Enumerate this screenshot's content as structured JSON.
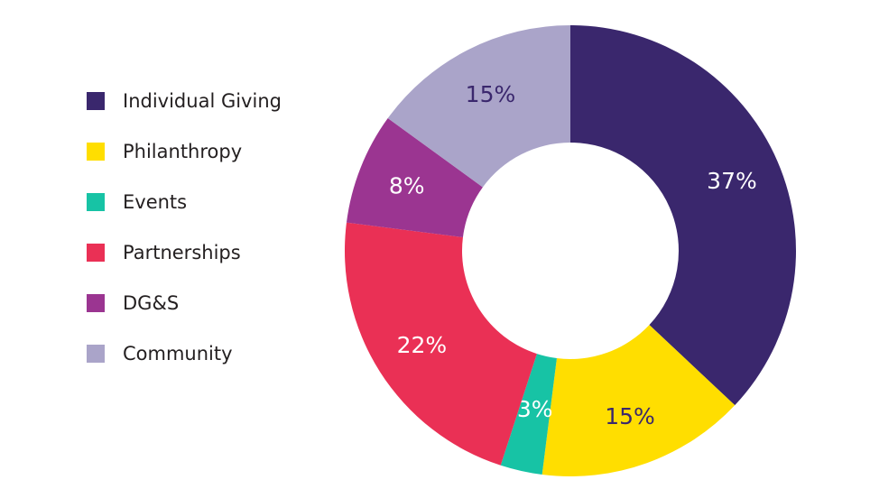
{
  "chart_data": {
    "type": "pie",
    "donut": true,
    "legend_position": "left",
    "slices": [
      {
        "label": "Individual Giving",
        "value": 37,
        "display": "37%",
        "color": "#3a276d",
        "text_color": "#ffffff"
      },
      {
        "label": "Philanthropy",
        "value": 15,
        "display": "15%",
        "color": "#ffde00",
        "text_color": "#3a276d"
      },
      {
        "label": "Events",
        "value": 3,
        "display": "3%",
        "color": "#17c3a5",
        "text_color": "#ffffff"
      },
      {
        "label": "Partnerships",
        "value": 22,
        "display": "22%",
        "color": "#ea3055",
        "text_color": "#ffffff"
      },
      {
        "label": "DG&S",
        "value": 8,
        "display": "8%",
        "color": "#9b3591",
        "text_color": "#ffffff"
      },
      {
        "label": "Community",
        "value": 15,
        "display": "15%",
        "color": "#aaa4c9",
        "text_color": "#3a276d"
      }
    ]
  }
}
